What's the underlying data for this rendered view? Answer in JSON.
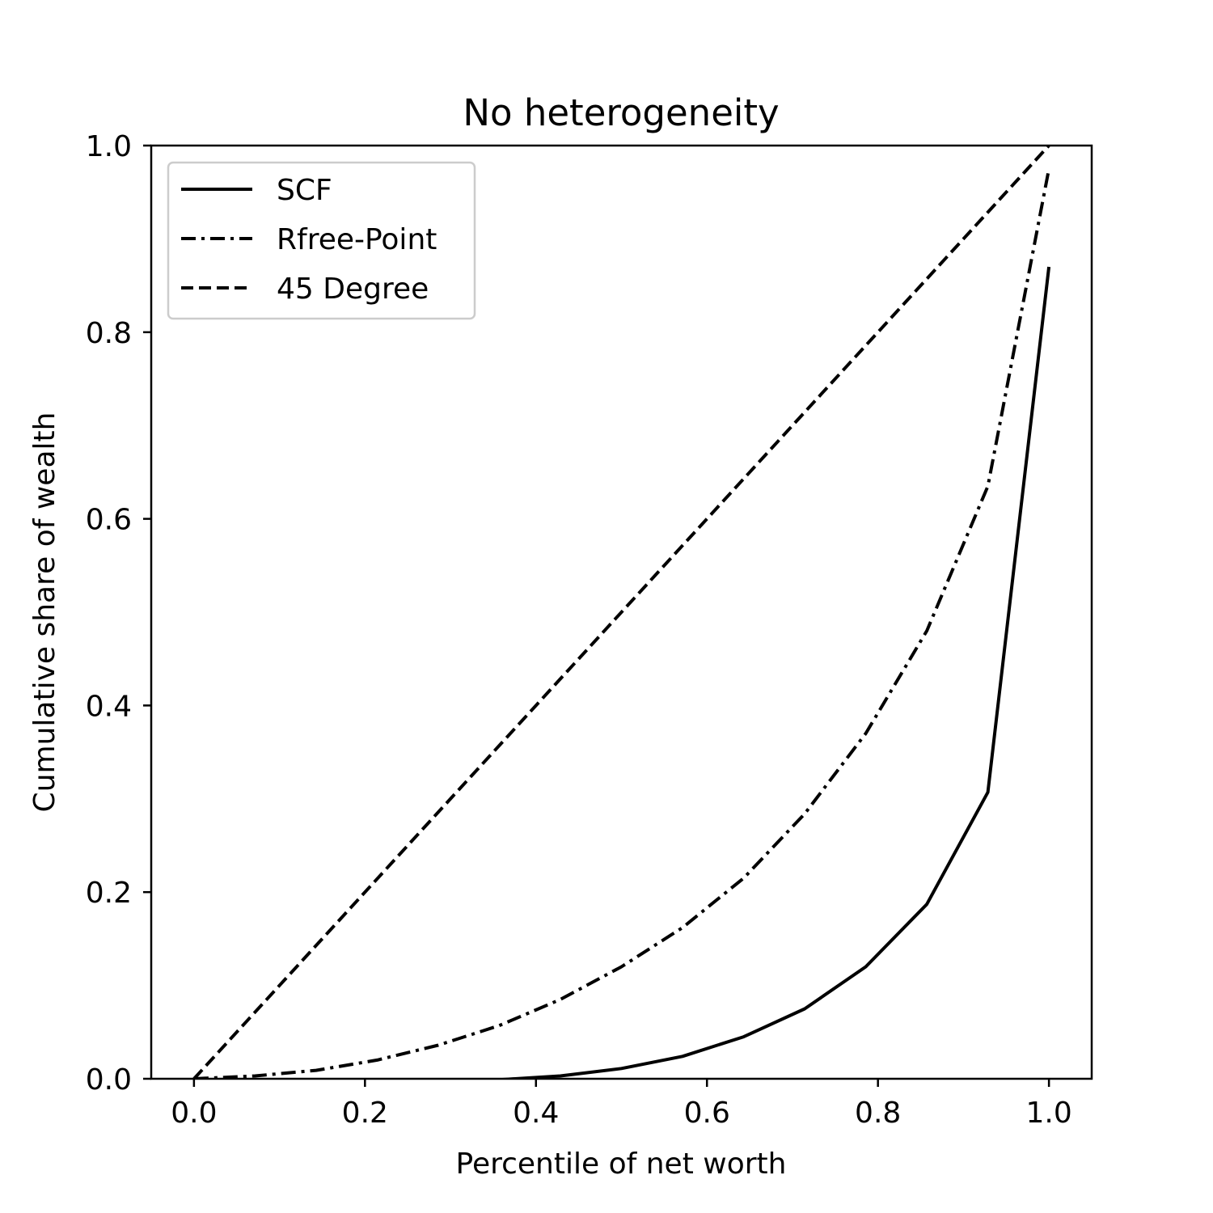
{
  "chart_data": {
    "type": "line",
    "title": "No heterogeneity",
    "xlabel": "Percentile of net worth",
    "ylabel": "Cumulative share of wealth",
    "xlim": [
      -0.05,
      1.05
    ],
    "ylim": [
      0.0,
      1.0
    ],
    "xticks": [
      "0.0",
      "0.2",
      "0.4",
      "0.6",
      "0.8",
      "1.0"
    ],
    "yticks": [
      "0.0",
      "0.2",
      "0.4",
      "0.6",
      "0.8",
      "1.0"
    ],
    "grid": false,
    "legend_position": "top-left",
    "series": [
      {
        "name": "SCF",
        "style": "solid",
        "color": "#000000",
        "x": [
          0.0,
          0.0714,
          0.1429,
          0.2143,
          0.2857,
          0.3571,
          0.4286,
          0.5,
          0.5714,
          0.6429,
          0.7143,
          0.7857,
          0.8571,
          0.9286,
          1.0
        ],
        "y": [
          -0.02,
          -0.015,
          -0.01,
          -0.007,
          -0.004,
          -0.001,
          0.003,
          0.011,
          0.024,
          0.045,
          0.075,
          0.12,
          0.187,
          0.307,
          0.87
        ]
      },
      {
        "name": "Rfree-Point",
        "style": "dashdot",
        "color": "#000000",
        "x": [
          0.0,
          0.0714,
          0.1429,
          0.2143,
          0.2857,
          0.3571,
          0.4286,
          0.5,
          0.5714,
          0.6429,
          0.7143,
          0.7857,
          0.8571,
          0.9286,
          1.0
        ],
        "y": [
          0.0,
          0.003,
          0.009,
          0.02,
          0.036,
          0.057,
          0.085,
          0.12,
          0.162,
          0.215,
          0.284,
          0.37,
          0.48,
          0.635,
          0.975
        ]
      },
      {
        "name": "45 Degree",
        "style": "dashed",
        "color": "#000000",
        "x": [
          0.0,
          1.0
        ],
        "y": [
          0.0,
          1.0
        ]
      }
    ]
  }
}
